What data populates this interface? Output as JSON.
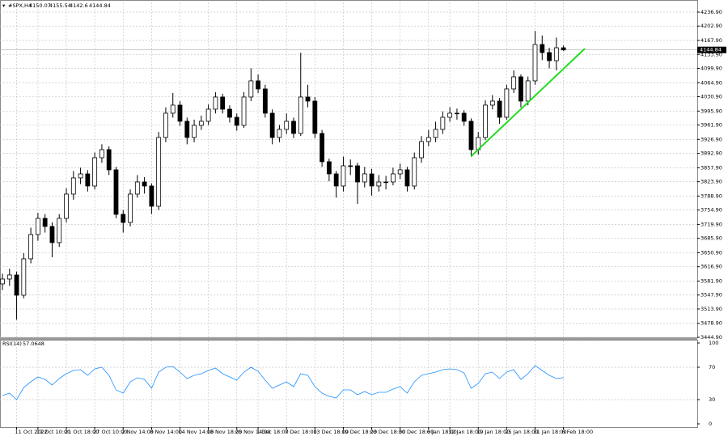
{
  "header": {
    "symbol": "#SPX,H4"
  },
  "chart_data": [
    {
      "type": "candlestick",
      "categories": [
        null,
        null,
        "11 Oct 2022",
        null,
        null,
        "17 Oct 10:00",
        null,
        null,
        null,
        "21 Oct 18:00",
        null,
        null,
        null,
        "27 Oct 10:00",
        null,
        null,
        null,
        "2 Nov 14:00",
        null,
        null,
        null,
        "8 Nov 14:00",
        null,
        null,
        null,
        "14 Nov 14:00",
        null,
        null,
        null,
        "18 Nov 18:00",
        null,
        null,
        null,
        "25 Nov 14:00",
        null,
        null,
        "1 Dec 18:00",
        null,
        null,
        null,
        "7 Dec 18:00",
        null,
        null,
        null,
        "13 Dec 18:00",
        null,
        null,
        null,
        "19 Dec 18:00",
        null,
        null,
        null,
        "23 Dec 18:00",
        null,
        null,
        null,
        "30 Dec 18:00",
        null,
        null,
        null,
        "6 Jan 18:00",
        null,
        null,
        "12 Jan 18:00",
        null,
        null,
        null,
        "19 Jan 18:00",
        null,
        null,
        null,
        "25 Jan 18:00",
        null,
        null,
        null,
        "31 Jan 18:00",
        null,
        null,
        null,
        "6 Feb 18:00"
      ],
      "open": [
        3575,
        3586.8,
        3596.7,
        3547.4,
        3636.1,
        3695.2,
        3734.6,
        3714.9,
        3675.5,
        3734.6,
        3793.7,
        3833.1,
        3842.9,
        3813.4,
        3882.3,
        3902.0,
        3852.8,
        3744.4,
        3724.7,
        3793.7,
        3823.2,
        3813.4,
        3764.1,
        3931.6,
        3990.7,
        4010.4,
        3971.0,
        3931.6,
        3961.1,
        3971.0,
        4000.5,
        4030.1,
        4000.5,
        3980.8,
        3961.1,
        4030.1,
        4069.5,
        4049.8,
        3990.7,
        3931.6,
        3951.3,
        3971.0,
        3941.4,
        4030.1,
        4020.2,
        3941.4,
        3872.5,
        3842.9,
        3813.4,
        3862.6,
        3862.6,
        3823.2,
        3842.9,
        3813.4,
        3823.2,
        3823.2,
        3842.9,
        3852.8,
        3813.4,
        3882.3,
        3921.7,
        3931.6,
        3951.3,
        3980.8,
        3990.7,
        3990.7,
        3971.0,
        3902.0,
        3931.6,
        4010.4,
        4020.2,
        3980.8,
        4049.8,
        4079.3,
        4020.2,
        4069.5,
        4158.1,
        4138.4,
        4118.7,
        4150.07
      ],
      "high": [
        3600,
        3612,
        3605,
        3650,
        3712,
        3748,
        3745,
        3725,
        3745,
        3808,
        3850,
        3858,
        3852,
        3895,
        3915,
        3910,
        3860,
        3755,
        3805,
        3840,
        3835,
        3820,
        3945,
        4005,
        4040,
        4020,
        3980,
        3975,
        3985,
        4012,
        4042,
        4038,
        4010,
        3990,
        4042,
        4100,
        4085,
        4060,
        4000,
        3962,
        3990,
        3980,
        4138,
        4060,
        4030,
        3950,
        3880,
        3850,
        3885,
        3878,
        3870,
        3860,
        3855,
        3840,
        3838,
        3858,
        3868,
        3860,
        3895,
        3935,
        3950,
        3970,
        3995,
        4005,
        4002,
        3998,
        3978,
        3945,
        4022,
        4035,
        4028,
        4060,
        4095,
        4085,
        4080,
        4191,
        4180,
        4150,
        4175,
        4155.54
      ],
      "low": [
        3560,
        3570,
        3488,
        3540,
        3625,
        3680,
        3700,
        3640,
        3665,
        3725,
        3780,
        3818,
        3800,
        3805,
        3870,
        3840,
        3735,
        3700,
        3715,
        3785,
        3795,
        3745,
        3755,
        3920,
        3980,
        3960,
        3915,
        3920,
        3950,
        3962,
        3990,
        3990,
        3968,
        3948,
        3955,
        4020,
        4040,
        3980,
        3915,
        3920,
        3940,
        3930,
        3935,
        4005,
        3930,
        3860,
        3825,
        3785,
        3800,
        3840,
        3770,
        3810,
        3790,
        3800,
        3805,
        3815,
        3830,
        3800,
        3805,
        3870,
        3910,
        3920,
        3940,
        3970,
        3975,
        3960,
        3885,
        3890,
        3925,
        4000,
        3965,
        3975,
        4040,
        4005,
        4010,
        4060,
        4120,
        4100,
        4095,
        4142.6
      ],
      "close": [
        3586.8,
        3596.7,
        3547.4,
        3636.1,
        3695.2,
        3734.6,
        3714.9,
        3675.5,
        3734.6,
        3793.7,
        3833.1,
        3842.9,
        3813.4,
        3882.3,
        3902.0,
        3852.8,
        3744.4,
        3724.7,
        3793.7,
        3823.2,
        3813.4,
        3764.1,
        3931.6,
        3990.7,
        4010.4,
        3971.0,
        3931.6,
        3961.1,
        3971.0,
        4000.5,
        4030.1,
        4000.5,
        3980.8,
        3961.1,
        4030.1,
        4069.5,
        4049.8,
        3990.7,
        3931.6,
        3951.3,
        3971.0,
        3941.4,
        4030.1,
        4020.2,
        3941.4,
        3872.5,
        3842.9,
        3813.4,
        3862.6,
        3862.6,
        3823.2,
        3842.9,
        3813.4,
        3823.2,
        3823.2,
        3842.9,
        3852.8,
        3813.4,
        3882.3,
        3921.7,
        3931.6,
        3951.3,
        3980.8,
        3990.7,
        3990.7,
        3971.0,
        3902.0,
        3931.6,
        4010.4,
        4020.2,
        3980.8,
        4049.8,
        4079.3,
        4020.2,
        4069.5,
        4158.1,
        4138.4,
        4118.7,
        4150.1,
        4144.84
      ],
      "ylim": [
        3444.9,
        4260.5
      ],
      "yticks": [
        {
          "value": 3444.9,
          "label": "3444.90"
        },
        {
          "value": 3478.9,
          "label": "3478.90"
        },
        {
          "value": 3513.9,
          "label": "3513.90"
        },
        {
          "value": 3547.9,
          "label": "3547.90"
        },
        {
          "value": 3581.9,
          "label": "3581.90"
        },
        {
          "value": 3616.9,
          "label": "3616.90"
        },
        {
          "value": 3650.9,
          "label": "3650.90"
        },
        {
          "value": 3685.9,
          "label": "3685.90"
        },
        {
          "value": 3719.9,
          "label": "3719.90"
        },
        {
          "value": 3754.9,
          "label": "3754.90"
        },
        {
          "value": 3788.9,
          "label": "3788.90"
        },
        {
          "value": 3823.9,
          "label": "3823.90"
        },
        {
          "value": 3857.9,
          "label": "3857.90"
        },
        {
          "value": 3892.9,
          "label": "3892.90"
        },
        {
          "value": 3926.9,
          "label": "3926.90"
        },
        {
          "value": 3961.9,
          "label": "3961.90"
        },
        {
          "value": 3995.9,
          "label": "3995.90"
        },
        {
          "value": 4030.9,
          "label": "4030.90"
        },
        {
          "value": 4064.9,
          "label": "4064.90"
        },
        {
          "value": 4099.9,
          "label": "4099.90"
        },
        {
          "value": 4133.9,
          "label": "4133.90"
        },
        {
          "value": 4167.9,
          "label": "4167.90"
        },
        {
          "value": 4202.9,
          "label": "4202.90"
        },
        {
          "value": 4236.9,
          "label": "4236.90"
        }
      ],
      "grid": true,
      "trendline": {
        "start": [
          66,
          3886
        ],
        "end": [
          82,
          4148
        ],
        "color": "#22dd22"
      }
    },
    {
      "type": "line",
      "name": "RSI(14)",
      "color": "#1e90ff",
      "values": [
        35,
        38,
        30,
        45,
        52,
        58,
        55,
        48,
        56,
        62,
        66,
        67,
        60,
        68,
        70,
        60,
        42,
        38,
        52,
        57,
        55,
        44,
        64,
        70,
        71,
        64,
        56,
        60,
        62,
        66,
        69,
        62,
        58,
        54,
        64,
        70,
        65,
        54,
        44,
        48,
        52,
        46,
        62,
        60,
        46,
        38,
        34,
        32,
        42,
        42,
        36,
        40,
        36,
        39,
        39,
        43,
        46,
        38,
        52,
        60,
        62,
        64,
        67,
        68,
        67,
        63,
        44,
        50,
        62,
        64,
        56,
        64,
        67,
        55,
        62,
        72,
        66,
        60,
        56,
        57.0648
      ],
      "ylim": [
        0,
        100
      ],
      "yticks": [
        0,
        30,
        70,
        100
      ],
      "grid": true
    }
  ]
}
